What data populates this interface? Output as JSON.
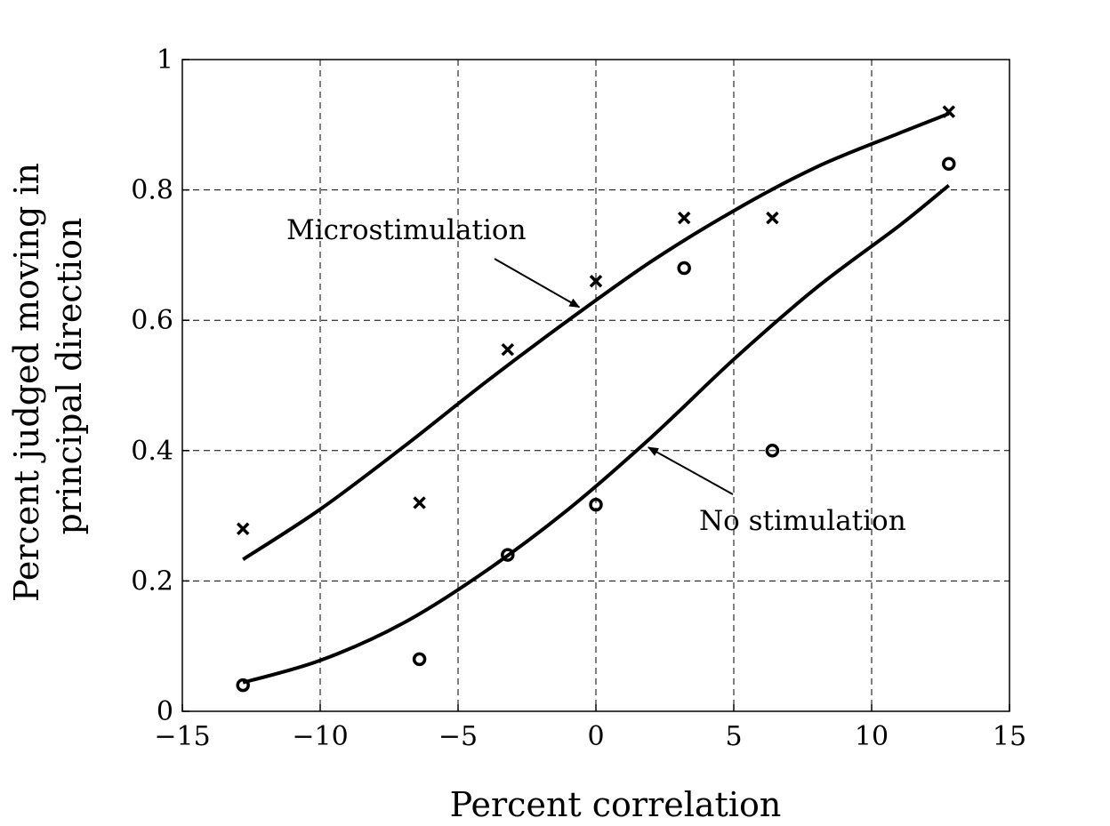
{
  "chart_data": {
    "type": "scatter",
    "xlabel": "Percent correlation",
    "ylabel_lines": [
      "Percent judged moving in",
      "principal direction"
    ],
    "xlim": [
      -15,
      15
    ],
    "ylim": [
      0,
      1
    ],
    "x_ticks": [
      -15,
      -10,
      -5,
      0,
      5,
      10,
      15
    ],
    "x_tick_labels": [
      "−15",
      "−10",
      "−5",
      "0",
      "5",
      "10",
      "15"
    ],
    "y_ticks": [
      0,
      0.2,
      0.4,
      0.6,
      0.8,
      1
    ],
    "y_tick_labels": [
      "0",
      "0.2",
      "0.4",
      "0.6",
      "0.8",
      "1"
    ],
    "grid": true,
    "series": [
      {
        "name": "Microstimulation",
        "marker": "x",
        "points": [
          {
            "x": -12.8,
            "y": 0.28
          },
          {
            "x": -6.4,
            "y": 0.32
          },
          {
            "x": -3.2,
            "y": 0.555
          },
          {
            "x": 0.0,
            "y": 0.66
          },
          {
            "x": 3.2,
            "y": 0.757
          },
          {
            "x": 6.4,
            "y": 0.757
          },
          {
            "x": 12.8,
            "y": 0.92
          }
        ],
        "fit": [
          {
            "x": -12.8,
            "y": 0.233
          },
          {
            "x": -10.0,
            "y": 0.31
          },
          {
            "x": -7.0,
            "y": 0.405
          },
          {
            "x": -4.0,
            "y": 0.505
          },
          {
            "x": -1.0,
            "y": 0.6
          },
          {
            "x": 2.0,
            "y": 0.69
          },
          {
            "x": 5.0,
            "y": 0.768
          },
          {
            "x": 8.0,
            "y": 0.835
          },
          {
            "x": 11.0,
            "y": 0.887
          },
          {
            "x": 12.8,
            "y": 0.917
          }
        ]
      },
      {
        "name": "No stimulation",
        "marker": "o",
        "points": [
          {
            "x": -12.8,
            "y": 0.04
          },
          {
            "x": -6.4,
            "y": 0.08
          },
          {
            "x": -3.2,
            "y": 0.24
          },
          {
            "x": 0.0,
            "y": 0.317
          },
          {
            "x": 3.2,
            "y": 0.68
          },
          {
            "x": 6.4,
            "y": 0.4
          },
          {
            "x": 12.8,
            "y": 0.84
          }
        ],
        "fit": [
          {
            "x": -12.8,
            "y": 0.044
          },
          {
            "x": -10.0,
            "y": 0.078
          },
          {
            "x": -7.0,
            "y": 0.135
          },
          {
            "x": -4.0,
            "y": 0.215
          },
          {
            "x": -1.0,
            "y": 0.31
          },
          {
            "x": 2.0,
            "y": 0.42
          },
          {
            "x": 5.0,
            "y": 0.54
          },
          {
            "x": 8.0,
            "y": 0.65
          },
          {
            "x": 11.0,
            "y": 0.745
          },
          {
            "x": 12.8,
            "y": 0.807
          }
        ]
      }
    ],
    "annotations": [
      {
        "text": "Microstimulation",
        "arrow_to": {
          "x": -0.6,
          "y": 0.62
        }
      },
      {
        "text": "No stimulation",
        "arrow_to": {
          "x": 1.9,
          "y": 0.405
        }
      }
    ]
  }
}
